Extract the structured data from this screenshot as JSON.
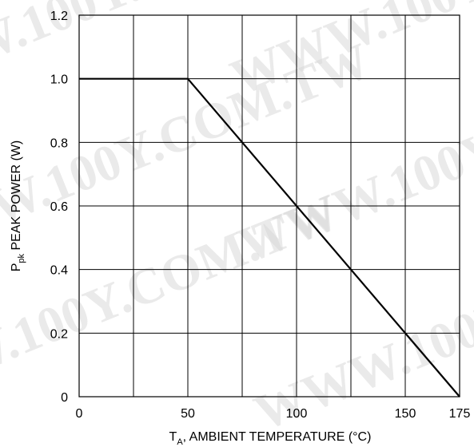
{
  "chart_data": {
    "type": "line",
    "title": "",
    "xlabel": {
      "main": "T",
      "sub": "A",
      "rest": ", AMBIENT TEMPERATURE (°C)"
    },
    "ylabel": {
      "main": "P",
      "sub": "pk",
      "rest": " PEAK POWER (W)"
    },
    "xlim": [
      0,
      175
    ],
    "ylim": [
      0,
      1.2
    ],
    "x_ticks": [
      {
        "value": 0,
        "label": "0"
      },
      {
        "value": 50,
        "label": "50"
      },
      {
        "value": 100,
        "label": "100"
      },
      {
        "value": 150,
        "label": "150"
      },
      {
        "value": 175,
        "label": "175"
      }
    ],
    "x_grid": [
      0,
      25,
      50,
      75,
      100,
      125,
      150,
      175
    ],
    "y_ticks": [
      {
        "value": 0,
        "label": "0"
      },
      {
        "value": 0.2,
        "label": "0.2"
      },
      {
        "value": 0.4,
        "label": "0.4"
      },
      {
        "value": 0.6,
        "label": "0.6"
      },
      {
        "value": 0.8,
        "label": "0.8"
      },
      {
        "value": 1.0,
        "label": "1.0"
      },
      {
        "value": 1.2,
        "label": "1.2"
      }
    ],
    "grid": true,
    "series": [
      {
        "x": [
          0,
          50,
          175
        ],
        "y": [
          1.0,
          1.0,
          0
        ],
        "color": "#000000"
      }
    ]
  },
  "watermark": {
    "text": "WWW.100Y.COM.TW",
    "color": "#d9d9d9"
  }
}
